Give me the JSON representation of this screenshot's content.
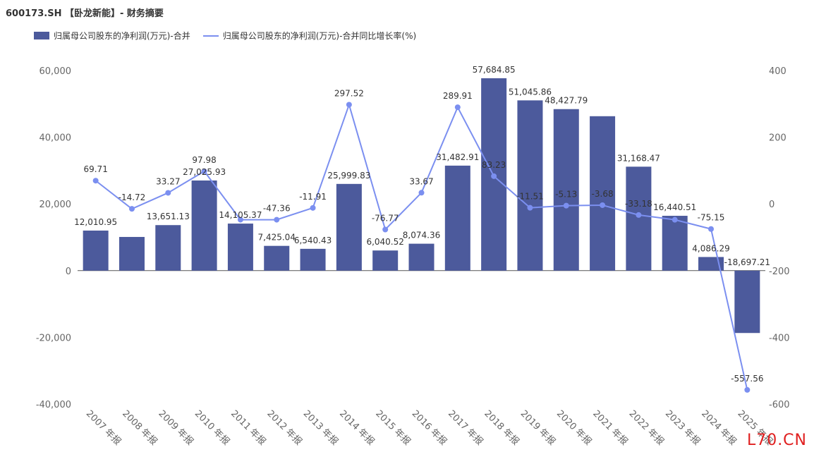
{
  "title": "600173.SH 【卧龙新能】- 财务摘要",
  "watermark": "L70.CN",
  "colors": {
    "bar": "#4c5a9c",
    "line": "#7b8ff0",
    "axis_text": "#666666",
    "label_text": "#333333"
  },
  "chart_data": {
    "type": "bar",
    "categories": [
      "2007 年报",
      "2008 年报",
      "2009 年报",
      "2010 年报",
      "2011 年报",
      "2012 年报",
      "2013 年报",
      "2014 年报",
      "2015 年报",
      "2016 年报",
      "2017 年报",
      "2018 年报",
      "2019 年报",
      "2020 年报",
      "2021 年报",
      "2022 年报",
      "2023 年报",
      "2024 年报",
      "2025 年报"
    ],
    "series": [
      {
        "name": "归属母公司股东的净利润(万元)-合并",
        "type": "bar",
        "axis": "left",
        "values": [
          12010.95,
          10100,
          13651.13,
          27025.93,
          14105.37,
          7425.04,
          6540.43,
          25999.83,
          6040.52,
          8074.36,
          31482.91,
          57684.85,
          51045.86,
          48427.79,
          46300,
          31168.47,
          16440.51,
          4086.29,
          -18697.21
        ],
        "labels": [
          "12,010.95",
          "",
          "13,651.13",
          "27,025.93",
          "14,105.37",
          "7,425.04",
          "6,540.43",
          "25,999.83",
          "6,040.52",
          "8,074.36",
          "31,482.91",
          "57,684.85",
          "51,045.86",
          "48,427.79",
          "",
          "31,168.47",
          "16,440.51",
          "4,086.29",
          "-18,697.21"
        ]
      },
      {
        "name": "归属母公司股东的净利润(万元)-合并同比增长率(%)",
        "type": "line",
        "axis": "right",
        "values": [
          69.71,
          -14.72,
          33.27,
          97.98,
          -47.36,
          -47.36,
          -11.91,
          297.52,
          -76.77,
          33.67,
          289.91,
          83.23,
          -11.51,
          -5.13,
          -3.68,
          -33.18,
          -47.5,
          -75.15,
          -557.56
        ],
        "labels": [
          "69.71",
          "-14.72",
          "33.27",
          "97.98",
          "",
          "-47.36",
          "-11.91",
          "297.52",
          "-76.77",
          "33.67",
          "289.91",
          "83.23",
          "-11.51",
          "-5.13",
          "-3.68",
          "-33.18",
          "",
          "-75.15",
          "-557.56"
        ]
      }
    ],
    "y_left": {
      "range": [
        -40000,
        60000
      ],
      "ticks": [
        "60,000",
        "40,000",
        "20,000",
        "0",
        "-20,000",
        "-40,000"
      ],
      "tick_values": [
        60000,
        40000,
        20000,
        0,
        -20000,
        -40000
      ]
    },
    "y_right": {
      "range": [
        -600,
        400
      ],
      "ticks": [
        "400",
        "200",
        "0",
        "-200",
        "-400",
        "-600"
      ],
      "tick_values": [
        400,
        200,
        0,
        -200,
        -400,
        -600
      ]
    },
    "grid": false,
    "legend_position": "top-left"
  }
}
